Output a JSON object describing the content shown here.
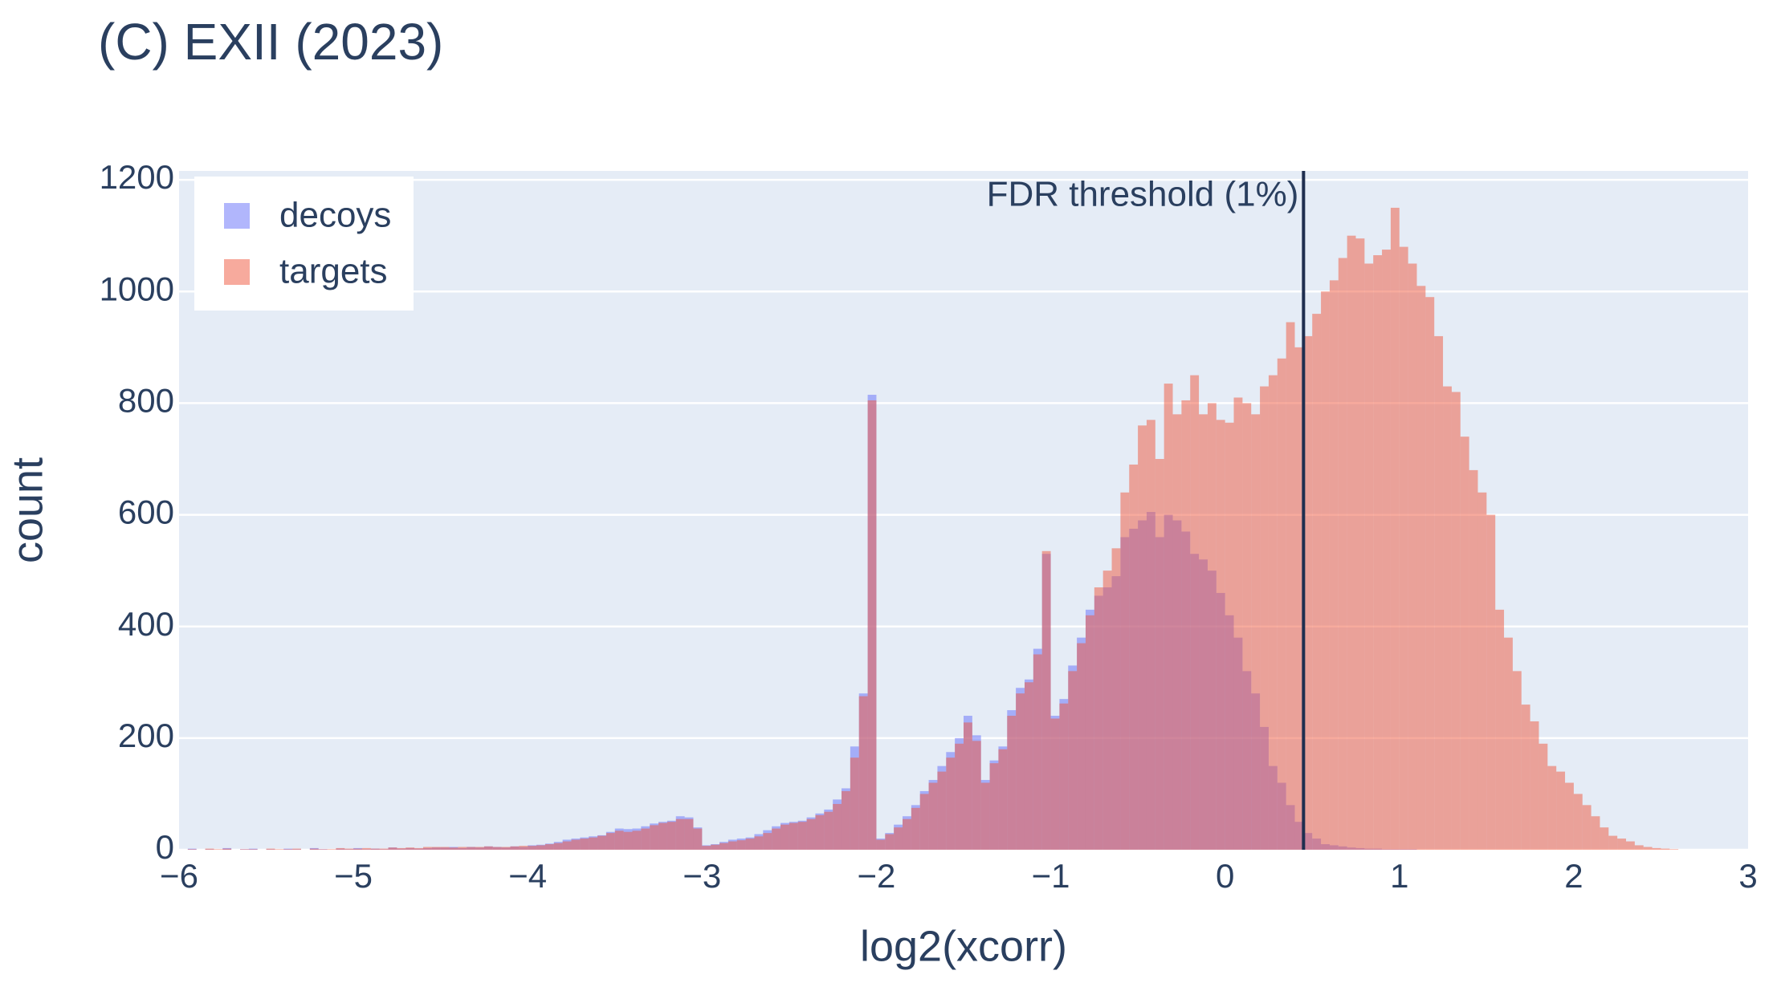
{
  "chart_data": {
    "type": "histogram",
    "title": "(C) EXII (2023)",
    "x_label": "log2(xcorr)",
    "y_label": "count",
    "bins": [
      -6,
      -5.95,
      -5.9,
      -5.85,
      -5.8,
      -5.75,
      -5.7,
      -5.65,
      -5.6,
      -5.55,
      -5.5,
      -5.45,
      -5.4,
      -5.35,
      -5.3,
      -5.25,
      -5.2,
      -5.15,
      -5.1,
      -5.05,
      -5,
      -4.95,
      -4.9,
      -4.85,
      -4.8,
      -4.75,
      -4.7,
      -4.65,
      -4.6,
      -4.55,
      -4.5,
      -4.45,
      -4.4,
      -4.35,
      -4.3,
      -4.25,
      -4.2,
      -4.15,
      -4.1,
      -4.05,
      -4,
      -3.95,
      -3.9,
      -3.85,
      -3.8,
      -3.75,
      -3.7,
      -3.65,
      -3.6,
      -3.55,
      -3.5,
      -3.45,
      -3.4,
      -3.35,
      -3.3,
      -3.25,
      -3.2,
      -3.15,
      -3.1,
      -3.05,
      -3,
      -2.95,
      -2.9,
      -2.85,
      -2.8,
      -2.75,
      -2.7,
      -2.65,
      -2.6,
      -2.55,
      -2.5,
      -2.45,
      -2.4,
      -2.35,
      -2.3,
      -2.25,
      -2.2,
      -2.15,
      -2.1,
      -2.05,
      -2,
      -1.95,
      -1.9,
      -1.85,
      -1.8,
      -1.75,
      -1.7,
      -1.65,
      -1.6,
      -1.55,
      -1.5,
      -1.45,
      -1.4,
      -1.35,
      -1.3,
      -1.25,
      -1.2,
      -1.15,
      -1.1,
      -1.05,
      -1,
      -0.95,
      -0.9,
      -0.85,
      -0.8,
      -0.75,
      -0.7,
      -0.65,
      -0.6,
      -0.55,
      -0.5,
      -0.45,
      -0.4,
      -0.35,
      -0.3,
      -0.25,
      -0.2,
      -0.15,
      -0.1,
      -0.05,
      0,
      0.05,
      0.1,
      0.15,
      0.2,
      0.25,
      0.3,
      0.35,
      0.4,
      0.45,
      0.5,
      0.55,
      0.6,
      0.65,
      0.7,
      0.75,
      0.8,
      0.85,
      0.9,
      0.95,
      1,
      1.05,
      1.1,
      1.15,
      1.2,
      1.25,
      1.3,
      1.35,
      1.4,
      1.45,
      1.5,
      1.55,
      1.6,
      1.65,
      1.7,
      1.75,
      1.8,
      1.85,
      1.9,
      1.95,
      2,
      2.05,
      2.1,
      2.15,
      2.2,
      2.25,
      2.3,
      2.35,
      2.4,
      2.45,
      2.5,
      2.55,
      2.6
    ],
    "series": [
      {
        "name": "decoys",
        "color": "#636efa",
        "values": [
          0,
          2,
          0,
          1,
          0,
          3,
          0,
          1,
          2,
          0,
          1,
          0,
          2,
          1,
          0,
          3,
          1,
          0,
          2,
          1,
          3,
          1,
          2,
          1,
          4,
          2,
          3,
          2,
          3,
          4,
          4,
          5,
          3,
          5,
          4,
          6,
          5,
          4,
          6,
          5,
          8,
          9,
          11,
          14,
          18,
          20,
          22,
          24,
          26,
          32,
          38,
          37,
          38,
          42,
          47,
          50,
          52,
          60,
          58,
          40,
          8,
          10,
          14,
          18,
          20,
          22,
          28,
          35,
          42,
          48,
          50,
          52,
          58,
          65,
          72,
          90,
          110,
          185,
          280,
          815,
          20,
          30,
          45,
          60,
          80,
          105,
          125,
          150,
          175,
          200,
          240,
          205,
          125,
          160,
          185,
          250,
          290,
          305,
          360,
          530,
          240,
          270,
          330,
          380,
          430,
          455,
          470,
          490,
          560,
          575,
          590,
          605,
          560,
          600,
          590,
          570,
          530,
          520,
          500,
          460,
          420,
          380,
          320,
          280,
          220,
          150,
          120,
          80,
          50,
          30,
          20,
          10,
          8,
          6,
          4,
          3,
          2,
          2,
          1,
          1,
          1,
          1,
          0,
          0,
          0,
          0,
          0,
          0,
          0,
          0,
          0,
          0,
          0,
          0,
          0,
          0,
          0,
          0,
          0,
          0,
          0,
          0,
          0,
          0,
          0,
          0,
          0,
          0,
          0,
          0,
          0,
          0
        ]
      },
      {
        "name": "targets",
        "color": "#ef553b",
        "values": [
          0,
          1,
          0,
          2,
          1,
          2,
          0,
          1,
          1,
          0,
          2,
          1,
          1,
          2,
          0,
          2,
          1,
          1,
          3,
          2,
          2,
          3,
          2,
          2,
          4,
          3,
          4,
          3,
          5,
          5,
          5,
          4,
          5,
          5,
          5,
          6,
          5,
          5,
          6,
          7,
          7,
          8,
          10,
          12,
          15,
          18,
          20,
          22,
          25,
          30,
          34,
          32,
          34,
          38,
          44,
          48,
          50,
          55,
          55,
          38,
          7,
          9,
          12,
          15,
          17,
          20,
          24,
          30,
          38,
          45,
          48,
          50,
          55,
          62,
          68,
          82,
          105,
          165,
          275,
          805,
          18,
          28,
          40,
          55,
          75,
          100,
          120,
          140,
          165,
          190,
          228,
          195,
          120,
          155,
          180,
          240,
          280,
          300,
          350,
          535,
          235,
          262,
          320,
          370,
          420,
          470,
          500,
          540,
          640,
          690,
          760,
          770,
          700,
          835,
          780,
          805,
          850,
          780,
          800,
          770,
          765,
          810,
          800,
          780,
          830,
          850,
          880,
          945,
          900,
          920,
          960,
          1000,
          1020,
          1060,
          1100,
          1095,
          1050,
          1065,
          1075,
          1150,
          1080,
          1050,
          1010,
          990,
          920,
          830,
          820,
          740,
          680,
          640,
          600,
          430,
          380,
          320,
          260,
          230,
          190,
          150,
          140,
          120,
          100,
          80,
          60,
          40,
          25,
          20,
          15,
          8,
          5,
          3,
          2,
          1
        ]
      }
    ],
    "opacity": 0.5,
    "xlim": [
      -6,
      3
    ],
    "xticks": [
      {
        "value": -6,
        "label": "−6"
      },
      {
        "value": -5,
        "label": "−5"
      },
      {
        "value": -4,
        "label": "−4"
      },
      {
        "value": -3,
        "label": "−3"
      },
      {
        "value": -2,
        "label": "−2"
      },
      {
        "value": -1,
        "label": "−1"
      },
      0,
      1,
      2,
      3
    ],
    "ylim": [
      0,
      1216
    ],
    "yticks": [
      0,
      200,
      400,
      600,
      800,
      1000,
      1200
    ],
    "grid": true,
    "legend": "top left",
    "threshold": {
      "x": 0.45,
      "label": "FDR threshold (1%)",
      "color": "#1f2e4f"
    }
  }
}
